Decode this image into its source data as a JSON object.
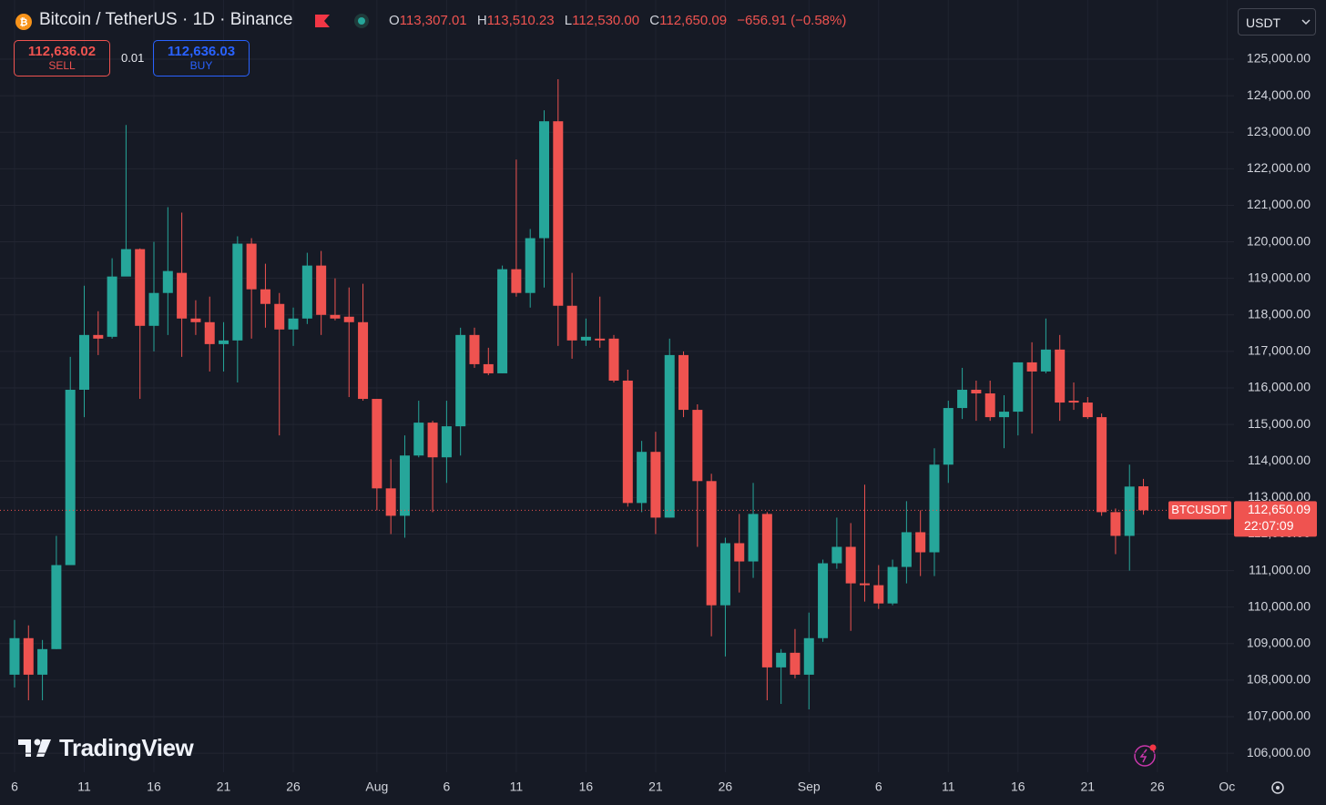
{
  "header": {
    "symbol_title": "Bitcoin / TetherUS · 1D · Binance",
    "ohlc_labels": [
      "O",
      "H",
      "L",
      "C"
    ],
    "ohlc_values": [
      "113,307.01",
      "113,510.23",
      "112,530.00",
      "112,650.09"
    ],
    "change": "−656.91 (−0.58%)"
  },
  "trade": {
    "sell_price": "112,636.02",
    "sell_label": "SELL",
    "spread": "0.01",
    "buy_price": "112,636.03",
    "buy_label": "BUY"
  },
  "currency": "USDT",
  "watermark": "TradingView",
  "chart_data": {
    "type": "candlestick",
    "categories": [
      "6",
      null,
      null,
      null,
      null,
      "11",
      null,
      null,
      null,
      null,
      "16",
      null,
      null,
      null,
      null,
      "21",
      null,
      null,
      null,
      null,
      "26",
      null,
      null,
      null,
      null,
      null,
      "Aug",
      null,
      null,
      null,
      null,
      "6",
      null,
      null,
      null,
      null,
      "11",
      null,
      null,
      null,
      null,
      "16",
      null,
      null,
      null,
      null,
      "21",
      null,
      null,
      null,
      null,
      "26",
      null,
      null,
      null,
      null,
      null,
      "Sep",
      null,
      null,
      null,
      null,
      "6",
      null,
      null,
      null,
      null,
      "11",
      null,
      null,
      null,
      null,
      "16",
      null,
      null,
      null,
      null,
      "21",
      null,
      null,
      null,
      null,
      "26",
      null,
      null,
      null,
      null,
      "Oc"
    ],
    "open": [
      108150,
      109150,
      108150,
      108850,
      111150,
      115950,
      117450,
      117400,
      119050,
      119800,
      117700,
      118600,
      119150,
      117900,
      117800,
      117200,
      117300,
      119950,
      118700,
      118300,
      117600,
      117900,
      119350,
      118000,
      117950,
      117800,
      115700,
      113250,
      112500,
      114150,
      115050,
      114100,
      114950,
      117450,
      116650,
      116400,
      119250,
      118600,
      120100,
      123300,
      118250,
      117300,
      117350,
      117350,
      116200,
      112850,
      114250,
      112450,
      116900,
      115400,
      113450,
      110050,
      111750,
      111250,
      112550,
      108350,
      108750,
      108150,
      109150,
      111200,
      111650,
      110650,
      110600,
      110100,
      111100,
      112050,
      111500,
      113900,
      115450,
      115950,
      115850,
      115200,
      115350,
      116700,
      116450,
      117050,
      115650,
      115600,
      115200,
      112600,
      111950,
      113307.01,
      null,
      null,
      null,
      null,
      null,
      null
    ],
    "high": [
      109650,
      109500,
      109100,
      111950,
      116850,
      118800,
      118100,
      119550,
      123200,
      119820,
      120000,
      120950,
      120800,
      118400,
      118500,
      117800,
      120150,
      120100,
      119400,
      118600,
      118200,
      119700,
      119750,
      119000,
      118750,
      118850,
      115700,
      114050,
      114700,
      115650,
      115100,
      115650,
      117650,
      117650,
      117100,
      119350,
      122250,
      120350,
      123600,
      124450,
      119150,
      117900,
      118500,
      117450,
      116500,
      114550,
      114800,
      117350,
      117000,
      115550,
      113650,
      111900,
      112550,
      113400,
      112600,
      108850,
      109400,
      109850,
      111300,
      112450,
      112300,
      113350,
      111150,
      111300,
      112900,
      112650,
      114350,
      115650,
      116550,
      116200,
      116200,
      115800,
      116700,
      117250,
      117900,
      117450,
      116150,
      115750,
      115300,
      112700,
      113900,
      113510.23,
      null,
      null,
      null,
      null,
      null,
      null
    ],
    "low": [
      107800,
      107450,
      107450,
      108850,
      111150,
      115200,
      116900,
      117350,
      119100,
      115700,
      117000,
      117450,
      116850,
      117450,
      116450,
      116450,
      116150,
      117350,
      117650,
      114700,
      117150,
      117750,
      117450,
      117850,
      115750,
      115650,
      112650,
      112000,
      111900,
      114100,
      112600,
      113400,
      114150,
      116550,
      116350,
      116400,
      118500,
      118200,
      118750,
      117150,
      116800,
      117150,
      117100,
      116150,
      112750,
      112600,
      112000,
      112450,
      115200,
      111650,
      109200,
      108650,
      110400,
      110800,
      107450,
      107350,
      108050,
      107200,
      109050,
      111050,
      109350,
      110150,
      109950,
      110050,
      110650,
      110850,
      110850,
      113400,
      115150,
      115100,
      115100,
      114350,
      114700,
      114750,
      116400,
      115100,
      115400,
      115150,
      112500,
      111450,
      111000,
      112530.0,
      null,
      null,
      null,
      null,
      null,
      null
    ],
    "close": [
      109150,
      108150,
      108850,
      111150,
      115950,
      117450,
      117350,
      119050,
      119800,
      117700,
      118600,
      119200,
      117900,
      117800,
      117200,
      117300,
      119950,
      118700,
      118300,
      117600,
      117900,
      119350,
      118000,
      117900,
      117800,
      115700,
      113250,
      112500,
      114150,
      115050,
      114100,
      114950,
      117450,
      116650,
      116400,
      119250,
      118600,
      120100,
      123300,
      118250,
      117300,
      117400,
      117300,
      116200,
      112850,
      114250,
      112450,
      116900,
      115400,
      113450,
      110050,
      111750,
      111250,
      112550,
      108350,
      108750,
      108150,
      109150,
      111200,
      111650,
      110650,
      110600,
      110100,
      111100,
      112050,
      111500,
      113900,
      115450,
      115950,
      115850,
      115200,
      115350,
      116700,
      116450,
      117050,
      115600,
      115600,
      115200,
      112600,
      111950,
      113300,
      112650.09,
      null,
      null,
      null,
      null,
      null,
      null
    ],
    "up_color": "#26a69a",
    "down_color": "#ef5350",
    "ylim": [
      105480,
      126620
    ],
    "yticks": [
      {
        "value": 106000,
        "label": "106,000.00"
      },
      {
        "value": 107000,
        "label": "107,000.00"
      },
      {
        "value": 108000,
        "label": "108,000.00"
      },
      {
        "value": 109000,
        "label": "109,000.00"
      },
      {
        "value": 110000,
        "label": "110,000.00"
      },
      {
        "value": 111000,
        "label": "111,000.00"
      },
      {
        "value": 112000,
        "label": "112,000.00"
      },
      {
        "value": 113000,
        "label": "113,000.00"
      },
      {
        "value": 114000,
        "label": "114,000.00"
      },
      {
        "value": 115000,
        "label": "115,000.00"
      },
      {
        "value": 116000,
        "label": "116,000.00"
      },
      {
        "value": 117000,
        "label": "117,000.00"
      },
      {
        "value": 118000,
        "label": "118,000.00"
      },
      {
        "value": 119000,
        "label": "119,000.00"
      },
      {
        "value": 120000,
        "label": "120,000.00"
      },
      {
        "value": 121000,
        "label": "121,000.00"
      },
      {
        "value": 122000,
        "label": "122,000.00"
      },
      {
        "value": 123000,
        "label": "123,000.00"
      },
      {
        "value": 124000,
        "label": "124,000.00"
      },
      {
        "value": 125000,
        "label": "125,000.00"
      }
    ],
    "grid": true,
    "last_price": {
      "symbol": "BTCUSDT",
      "label": "112,650.09",
      "countdown": "22:07:09"
    }
  }
}
